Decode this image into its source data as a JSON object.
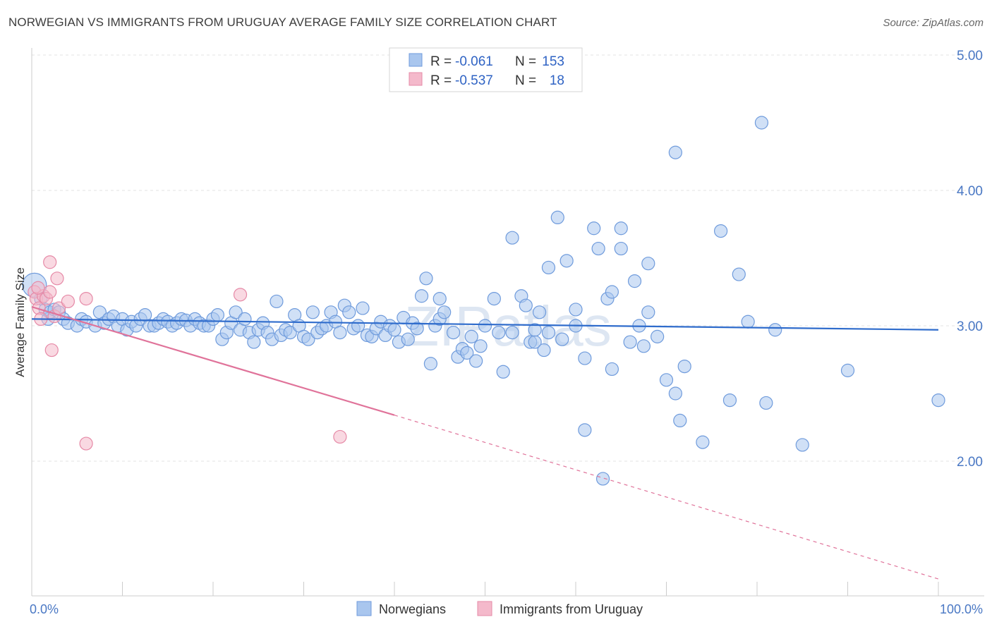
{
  "title": "NORWEGIAN VS IMMIGRANTS FROM URUGUAY AVERAGE FAMILY SIZE CORRELATION CHART",
  "source": "Source: ZipAtlas.com",
  "colors": {
    "blue_fill": "#a9c6ee",
    "blue_stroke": "#6f9bdc",
    "blue_line": "#2f6ccc",
    "pink_fill": "#f4b9cb",
    "pink_stroke": "#e68aa7",
    "pink_line": "#e0739a",
    "tick_text": "#4a78c4"
  },
  "legend": {
    "r_label": "R =",
    "n_label": "N =",
    "rows": [
      {
        "r": "-0.061",
        "n": "153"
      },
      {
        "r": "-0.537",
        "n": "18"
      }
    ]
  },
  "chart_data": {
    "type": "scatter",
    "title": "NORWEGIAN VS IMMIGRANTS FROM URUGUAY AVERAGE FAMILY SIZE CORRELATION CHART",
    "ylabel": "Average Family Size",
    "xlabel": "",
    "x_tick_labels": [
      "0.0%",
      "100.0%"
    ],
    "y_tick_labels": [
      "2.00",
      "3.00",
      "4.00",
      "5.00"
    ],
    "y_ticks": [
      2,
      3,
      4,
      5
    ],
    "xlim": [
      0,
      100
    ],
    "ylim": [
      1.05,
      5.1
    ],
    "grid": "horizontal dashed",
    "legend_position": "top-center",
    "series": [
      {
        "name": "Norwegians",
        "color": "#a9c6ee",
        "trend": {
          "x": [
            0,
            100
          ],
          "y": [
            3.05,
            2.97
          ]
        },
        "points": [
          [
            0.3,
            3.3
          ],
          [
            1,
            3.2
          ],
          [
            1.5,
            3.12
          ],
          [
            1.8,
            3.05
          ],
          [
            2,
            3.1
          ],
          [
            2.5,
            3.12
          ],
          [
            3,
            3.1
          ],
          [
            3.5,
            3.05
          ],
          [
            4,
            3.02
          ],
          [
            5,
            3.0
          ],
          [
            5.5,
            3.05
          ],
          [
            6,
            3.03
          ],
          [
            7,
            3.0
          ],
          [
            7.5,
            3.1
          ],
          [
            8,
            3.02
          ],
          [
            8.5,
            3.05
          ],
          [
            9,
            3.07
          ],
          [
            9.5,
            3.0
          ],
          [
            10,
            3.05
          ],
          [
            10.5,
            2.97
          ],
          [
            11,
            3.03
          ],
          [
            11.5,
            3.0
          ],
          [
            12,
            3.05
          ],
          [
            12.5,
            3.08
          ],
          [
            13,
            3.0
          ],
          [
            13.5,
            3.0
          ],
          [
            14,
            3.02
          ],
          [
            14.5,
            3.05
          ],
          [
            15,
            3.03
          ],
          [
            15.5,
            3.0
          ],
          [
            16,
            3.02
          ],
          [
            16.5,
            3.05
          ],
          [
            17,
            3.04
          ],
          [
            17.5,
            3.0
          ],
          [
            18,
            3.05
          ],
          [
            18.5,
            3.02
          ],
          [
            19,
            3.0
          ],
          [
            19.5,
            3.0
          ],
          [
            20,
            3.05
          ],
          [
            20.5,
            3.08
          ],
          [
            21,
            2.9
          ],
          [
            21.5,
            2.95
          ],
          [
            22,
            3.02
          ],
          [
            22.5,
            3.1
          ],
          [
            23,
            2.97
          ],
          [
            23.5,
            3.05
          ],
          [
            24,
            2.95
          ],
          [
            24.5,
            2.88
          ],
          [
            25,
            2.97
          ],
          [
            25.5,
            3.02
          ],
          [
            26,
            2.95
          ],
          [
            26.5,
            2.9
          ],
          [
            27,
            3.18
          ],
          [
            27.5,
            2.93
          ],
          [
            28,
            2.97
          ],
          [
            28.5,
            2.95
          ],
          [
            29,
            3.08
          ],
          [
            29.5,
            3.0
          ],
          [
            30,
            2.92
          ],
          [
            30.5,
            2.9
          ],
          [
            31,
            3.1
          ],
          [
            31.5,
            2.95
          ],
          [
            32,
            2.98
          ],
          [
            32.5,
            3.0
          ],
          [
            33,
            3.1
          ],
          [
            33.5,
            3.03
          ],
          [
            34,
            2.95
          ],
          [
            34.5,
            3.15
          ],
          [
            35,
            3.1
          ],
          [
            35.5,
            2.98
          ],
          [
            36,
            3.0
          ],
          [
            36.5,
            3.13
          ],
          [
            37,
            2.93
          ],
          [
            37.5,
            2.92
          ],
          [
            38,
            2.98
          ],
          [
            38.5,
            3.03
          ],
          [
            39,
            2.93
          ],
          [
            39.5,
            3.0
          ],
          [
            40,
            2.97
          ],
          [
            40.5,
            2.88
          ],
          [
            41,
            3.06
          ],
          [
            41.5,
            2.9
          ],
          [
            42,
            3.02
          ],
          [
            42.5,
            2.98
          ],
          [
            43,
            3.22
          ],
          [
            43.5,
            3.35
          ],
          [
            44,
            2.72
          ],
          [
            44.5,
            3.0
          ],
          [
            45,
            3.05
          ],
          [
            45.5,
            3.1
          ],
          [
            45,
            3.2
          ],
          [
            46.5,
            2.95
          ],
          [
            47,
            2.77
          ],
          [
            47.5,
            2.83
          ],
          [
            48,
            2.8
          ],
          [
            48.5,
            2.92
          ],
          [
            49,
            2.74
          ],
          [
            49.5,
            2.85
          ],
          [
            50,
            3.0
          ],
          [
            51,
            3.2
          ],
          [
            51.5,
            2.95
          ],
          [
            52,
            2.66
          ],
          [
            53,
            2.95
          ],
          [
            53,
            3.65
          ],
          [
            54,
            3.22
          ],
          [
            54.5,
            3.15
          ],
          [
            55,
            2.88
          ],
          [
            55.5,
            2.88
          ],
          [
            55.5,
            2.97
          ],
          [
            56,
            3.1
          ],
          [
            56.5,
            2.82
          ],
          [
            57,
            2.95
          ],
          [
            57,
            3.43
          ],
          [
            58,
            3.8
          ],
          [
            58.5,
            2.9
          ],
          [
            59,
            3.48
          ],
          [
            60,
            3.0
          ],
          [
            60,
            3.12
          ],
          [
            61,
            2.76
          ],
          [
            61,
            2.23
          ],
          [
            62,
            3.72
          ],
          [
            62.5,
            3.57
          ],
          [
            63,
            1.87
          ],
          [
            63.5,
            3.2
          ],
          [
            64,
            2.68
          ],
          [
            64,
            3.25
          ],
          [
            65,
            3.72
          ],
          [
            65,
            3.57
          ],
          [
            66,
            2.88
          ],
          [
            66.5,
            3.33
          ],
          [
            67,
            3.0
          ],
          [
            67.5,
            2.85
          ],
          [
            68,
            3.46
          ],
          [
            68,
            3.1
          ],
          [
            69,
            2.92
          ],
          [
            70,
            2.6
          ],
          [
            71,
            2.5
          ],
          [
            71.5,
            2.3
          ],
          [
            72,
            2.7
          ],
          [
            74,
            2.14
          ],
          [
            76,
            3.7
          ],
          [
            77,
            2.45
          ],
          [
            78,
            3.38
          ],
          [
            79,
            3.03
          ],
          [
            81,
            2.43
          ],
          [
            82,
            2.97
          ],
          [
            85,
            2.12
          ],
          [
            90,
            2.67
          ],
          [
            100,
            2.45
          ],
          [
            71,
            4.28
          ],
          [
            80.5,
            4.5
          ]
        ]
      },
      {
        "name": "Immigrants from Uruguay",
        "color": "#f4b9cb",
        "trend": {
          "x": [
            0,
            40
          ],
          "y": [
            3.14,
            2.34
          ],
          "dashed_to": {
            "x": 100,
            "y": 1.13
          }
        },
        "points": [
          [
            0.3,
            3.25
          ],
          [
            0.5,
            3.2
          ],
          [
            0.8,
            3.13
          ],
          [
            1,
            3.05
          ],
          [
            1.3,
            3.22
          ],
          [
            1.6,
            3.2
          ],
          [
            2,
            3.25
          ],
          [
            2.2,
            2.82
          ],
          [
            2.5,
            3.07
          ],
          [
            2.8,
            3.35
          ],
          [
            2,
            3.47
          ],
          [
            3,
            3.13
          ],
          [
            4,
            3.18
          ],
          [
            6,
            3.2
          ],
          [
            6,
            2.13
          ],
          [
            23,
            3.23
          ],
          [
            34,
            2.18
          ],
          [
            0.7,
            3.28
          ]
        ]
      }
    ]
  },
  "bottom_legend": [
    "Norwegians",
    "Immigrants from Uruguay"
  ],
  "watermark": "ZIPatlas"
}
